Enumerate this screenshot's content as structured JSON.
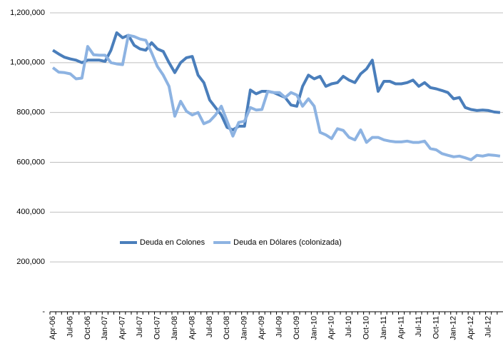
{
  "chart_data": {
    "type": "line",
    "categories": [
      "Apr-06",
      null,
      null,
      "Jul-06",
      null,
      null,
      "Oct-06",
      null,
      null,
      "Jan-07",
      null,
      null,
      "Apr-07",
      null,
      null,
      "Jul-07",
      null,
      null,
      "Oct-07",
      null,
      null,
      "Jan-08",
      null,
      null,
      "Apr-08",
      null,
      null,
      "Jul-08",
      null,
      null,
      "Oct-08",
      null,
      null,
      "Jan-09",
      null,
      null,
      "Apr-09",
      null,
      null,
      "Jul-09",
      null,
      null,
      "Oct-09",
      null,
      null,
      "Jan-10",
      null,
      null,
      "Apr-10",
      null,
      null,
      "Jul-10",
      null,
      null,
      "Oct-10",
      null,
      null,
      "Jan-11",
      null,
      null,
      "Apr-11",
      null,
      null,
      "Jul-11",
      null,
      null,
      "Oct-11",
      null,
      null,
      "Jan-12",
      null,
      null,
      "Apr-12",
      null,
      null,
      "Jul-12",
      null,
      null
    ],
    "series": [
      {
        "name": "Deuda en Colones",
        "color": "#4a7ebb",
        "values": [
          1050000,
          1035000,
          1022000,
          1015000,
          1010000,
          1000000,
          1010000,
          1010000,
          1010000,
          1005000,
          1050000,
          1120000,
          1100000,
          1110000,
          1070000,
          1055000,
          1050000,
          1080000,
          1055000,
          1045000,
          1000000,
          960000,
          1000000,
          1020000,
          1025000,
          950000,
          920000,
          850000,
          820000,
          790000,
          740000,
          730000,
          745000,
          745000,
          890000,
          875000,
          885000,
          885000,
          880000,
          870000,
          860000,
          830000,
          825000,
          905000,
          950000,
          935000,
          945000,
          905000,
          915000,
          920000,
          945000,
          930000,
          920000,
          955000,
          975000,
          1010000,
          885000,
          925000,
          925000,
          915000,
          915000,
          920000,
          930000,
          905000,
          920000,
          900000,
          895000,
          888000,
          880000,
          855000,
          860000,
          820000,
          812000,
          808000,
          810000,
          808000,
          802000,
          800000
        ]
      },
      {
        "name": "Deuda en Dólares (colonizada)",
        "color": "#8db3e2",
        "values": [
          980000,
          962000,
          960000,
          955000,
          935000,
          938000,
          1065000,
          1032000,
          1030000,
          1030000,
          1000000,
          995000,
          992000,
          1110000,
          1105000,
          1095000,
          1090000,
          1040000,
          985000,
          950000,
          905000,
          785000,
          845000,
          805000,
          790000,
          800000,
          755000,
          765000,
          790000,
          825000,
          765000,
          705000,
          760000,
          765000,
          820000,
          810000,
          812000,
          885000,
          880000,
          880000,
          860000,
          880000,
          870000,
          825000,
          855000,
          825000,
          720000,
          710000,
          695000,
          735000,
          728000,
          700000,
          690000,
          730000,
          680000,
          700000,
          700000,
          690000,
          685000,
          682000,
          682000,
          685000,
          680000,
          680000,
          685000,
          655000,
          650000,
          635000,
          628000,
          622000,
          625000,
          618000,
          610000,
          628000,
          625000,
          630000,
          628000,
          625000
        ]
      }
    ],
    "ylim": [
      0,
      1200000
    ],
    "yticks": [
      {
        "value": 0,
        "label": "-"
      },
      {
        "value": 200000,
        "label": "200,000"
      },
      {
        "value": 400000,
        "label": "400,000"
      },
      {
        "value": 600000,
        "label": "600,000"
      },
      {
        "value": 800000,
        "label": "800,000"
      },
      {
        "value": 1000000,
        "label": "1,000,000"
      },
      {
        "value": 1200000,
        "label": "1,200,000"
      }
    ],
    "grid": true,
    "legend": "center"
  }
}
